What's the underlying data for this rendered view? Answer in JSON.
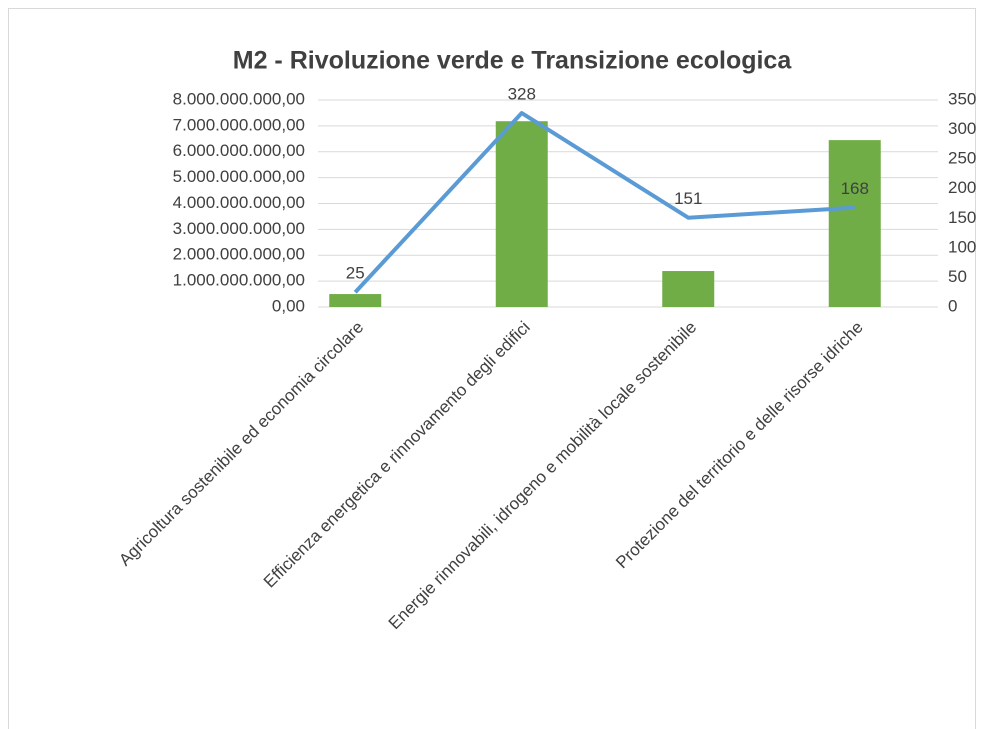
{
  "chart_data": {
    "type": "bar",
    "title": "M2 - Rivoluzione verde e Transizione ecologica",
    "categories": [
      "Agricoltura sostenibile ed economia circolare",
      "Efficienza energetica e rinnovamento degli edifici",
      "Energie rinnovabili, idrogeno e mobilità locale sostenibile",
      "Protezione del territorio e delle risorse idriche"
    ],
    "series": [
      {
        "type": "bar",
        "color": "#70ad47",
        "values": [
          500000000,
          7180000000,
          1390000000,
          6450000000
        ]
      },
      {
        "type": "line",
        "color": "#5b9bd5",
        "axis": "y2",
        "values": [
          25,
          328,
          151,
          168
        ]
      }
    ],
    "ylim": [
      0,
      8000000000
    ],
    "yticks": [
      {
        "value": 0,
        "label": "0,00"
      },
      {
        "value": 1000000000,
        "label": "1.000.000.000,00"
      },
      {
        "value": 2000000000,
        "label": "2.000.000.000,00"
      },
      {
        "value": 3000000000,
        "label": "3.000.000.000,00"
      },
      {
        "value": 4000000000,
        "label": "4.000.000.000,00"
      },
      {
        "value": 5000000000,
        "label": "5.000.000.000,00"
      },
      {
        "value": 6000000000,
        "label": "6.000.000.000,00"
      },
      {
        "value": 7000000000,
        "label": "7.000.000.000,00"
      },
      {
        "value": 8000000000,
        "label": "8.000.000.000,00"
      }
    ],
    "y2lim": [
      0,
      350
    ],
    "y2ticks": [
      0,
      50,
      100,
      150,
      200,
      250,
      300,
      350
    ],
    "grid": true
  }
}
